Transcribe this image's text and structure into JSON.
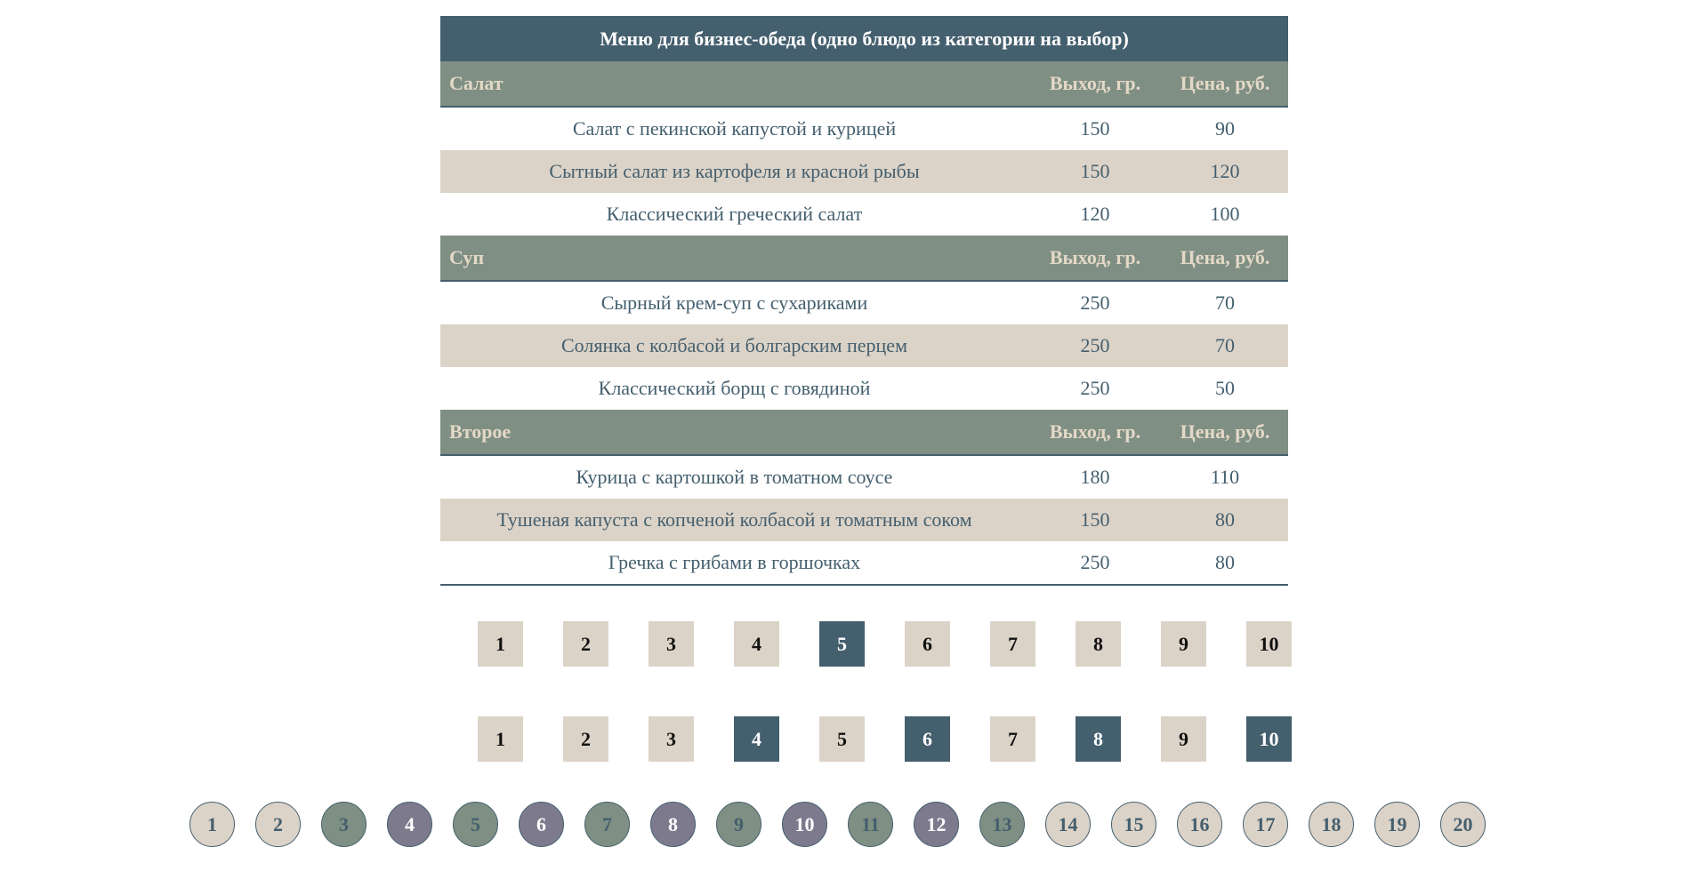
{
  "menu": {
    "title": "Меню для бизнес-обеда (одно блюдо из категории на выбор)",
    "categories": [
      {
        "name": "Салат",
        "weight_header": "Выход, гр.",
        "price_header": "Цена, руб.",
        "items": [
          {
            "name": "Салат с пекинской капустой и курицей",
            "weight": "150",
            "price": "90"
          },
          {
            "name": "Сытный салат из картофеля и красной рыбы",
            "weight": "150",
            "price": "120"
          },
          {
            "name": "Классический греческий салат",
            "weight": "120",
            "price": "100"
          }
        ]
      },
      {
        "name": "Суп",
        "weight_header": "Выход, гр.",
        "price_header": "Цена, руб.",
        "items": [
          {
            "name": "Сырный крем-суп с сухариками",
            "weight": "250",
            "price": "70"
          },
          {
            "name": "Солянка с колбасой и болгарским перцем",
            "weight": "250",
            "price": "70"
          },
          {
            "name": "Классический борщ с говядиной",
            "weight": "250",
            "price": "50"
          }
        ]
      },
      {
        "name": "Второе",
        "weight_header": "Выход, гр.",
        "price_header": "Цена, руб.",
        "items": [
          {
            "name": "Курица с картошкой в томатном соусе",
            "weight": "180",
            "price": "110"
          },
          {
            "name": "Тушеная капуста с копченой колбасой и томатным соком",
            "weight": "150",
            "price": "80"
          },
          {
            "name": "Гречка с грибами в горшочках",
            "weight": "250",
            "price": "80"
          }
        ]
      }
    ]
  },
  "pager1": {
    "pages": [
      "1",
      "2",
      "3",
      "4",
      "5",
      "6",
      "7",
      "8",
      "9",
      "10"
    ],
    "active": [
      5
    ]
  },
  "pager2": {
    "pages": [
      "1",
      "2",
      "3",
      "4",
      "5",
      "6",
      "7",
      "8",
      "9",
      "10"
    ],
    "active": [
      4,
      6,
      8,
      10
    ]
  },
  "circles": {
    "items": [
      {
        "label": "1",
        "style": "beige"
      },
      {
        "label": "2",
        "style": "beige"
      },
      {
        "label": "3",
        "style": "green"
      },
      {
        "label": "4",
        "style": "purple"
      },
      {
        "label": "5",
        "style": "green"
      },
      {
        "label": "6",
        "style": "purple"
      },
      {
        "label": "7",
        "style": "green"
      },
      {
        "label": "8",
        "style": "purple"
      },
      {
        "label": "9",
        "style": "green"
      },
      {
        "label": "10",
        "style": "purple"
      },
      {
        "label": "11",
        "style": "green"
      },
      {
        "label": "12",
        "style": "purple"
      },
      {
        "label": "13",
        "style": "green"
      },
      {
        "label": "14",
        "style": "beige"
      },
      {
        "label": "15",
        "style": "beige"
      },
      {
        "label": "16",
        "style": "beige"
      },
      {
        "label": "17",
        "style": "beige"
      },
      {
        "label": "18",
        "style": "beige"
      },
      {
        "label": "19",
        "style": "beige"
      },
      {
        "label": "20",
        "style": "beige"
      }
    ]
  },
  "colors": {
    "dark": "#445f6e",
    "sage": "#7f8f83",
    "beige": "#dcd3c8",
    "cream_text": "#e4d8c7",
    "purple": "#7d7a8d"
  }
}
